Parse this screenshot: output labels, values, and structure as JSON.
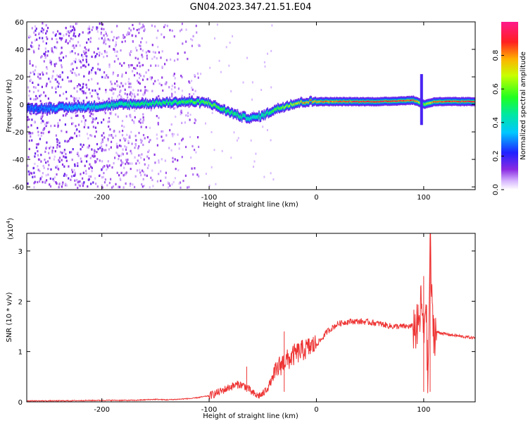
{
  "figure": {
    "title": "GN04.2023.347.21.51.E04"
  },
  "chart_data": [
    {
      "type": "heatmap",
      "title": "GN04.2023.347.21.51.E04",
      "xlabel": "Height of straight line (km)",
      "ylabel": "Frequency (Hz)",
      "xlim": [
        -270,
        148
      ],
      "ylim": [
        -62,
        60
      ],
      "x_ticks": [
        -200,
        -100,
        0,
        100
      ],
      "x_tick_labels": [
        "-200",
        "-100",
        "0",
        "100"
      ],
      "y_ticks": [
        -60,
        -40,
        -20,
        0,
        20,
        40,
        60
      ],
      "y_tick_labels": [
        "-60",
        "-40",
        "-20",
        "0",
        "20",
        "40",
        "60"
      ],
      "colorbar": {
        "label": "Normalized spectral amplitude",
        "range": [
          0,
          1
        ],
        "ticks": [
          0.0,
          0.2,
          0.4,
          0.6,
          0.8
        ],
        "tick_labels": [
          "0.0",
          "0.2",
          "0.4",
          "0.6",
          "0.8"
        ],
        "colormap": "rainbow (white→violet→blue→cyan→green→yellow→red→pink)"
      },
      "ridge": {
        "description": "dominant frequency ridge vs height",
        "points": [
          {
            "x": -270,
            "y": -3,
            "amp": 0.25
          },
          {
            "x": -220,
            "y": -2,
            "amp": 0.35
          },
          {
            "x": -180,
            "y": 0,
            "amp": 0.45
          },
          {
            "x": -150,
            "y": 1,
            "amp": 0.5
          },
          {
            "x": -120,
            "y": 2,
            "amp": 0.55
          },
          {
            "x": -100,
            "y": 1,
            "amp": 0.6
          },
          {
            "x": -90,
            "y": -3,
            "amp": 0.55
          },
          {
            "x": -80,
            "y": -6,
            "amp": 0.5
          },
          {
            "x": -70,
            "y": -9,
            "amp": 0.45
          },
          {
            "x": -60,
            "y": -10,
            "amp": 0.4
          },
          {
            "x": -50,
            "y": -8,
            "amp": 0.45
          },
          {
            "x": -40,
            "y": -4,
            "amp": 0.55
          },
          {
            "x": -25,
            "y": 0,
            "amp": 0.7
          },
          {
            "x": -10,
            "y": 2,
            "amp": 0.8
          },
          {
            "x": 20,
            "y": 2,
            "amp": 0.85
          },
          {
            "x": 60,
            "y": 2,
            "amp": 0.9
          },
          {
            "x": 90,
            "y": 3,
            "amp": 0.85
          },
          {
            "x": 100,
            "y": 0,
            "amp": 0.6
          },
          {
            "x": 110,
            "y": 2,
            "amp": 0.85
          },
          {
            "x": 148,
            "y": 2,
            "amp": 0.9
          }
        ],
        "burst": {
          "x": 98,
          "y_range": [
            -15,
            22
          ]
        }
      },
      "noise_region": {
        "x_range": [
          -270,
          -120
        ],
        "y_range": [
          -60,
          60
        ]
      }
    },
    {
      "type": "line",
      "xlabel": "Height of straight line (km)",
      "ylabel": "SNR (10 * v/v)",
      "y_scale_label": "(x10",
      "y_scale_exp": "4",
      "xlim": [
        -270,
        148
      ],
      "ylim": [
        0,
        3.35
      ],
      "x_ticks": [
        -200,
        -100,
        0,
        100
      ],
      "x_tick_labels": [
        "-200",
        "-100",
        "0",
        "100"
      ],
      "y_ticks": [
        0,
        1,
        2,
        3
      ],
      "y_tick_labels": [
        "0",
        "1",
        "2",
        "3"
      ],
      "color": "#ee3333",
      "series": [
        {
          "x": [
            -270,
            -240,
            -200,
            -170,
            -150,
            -140,
            -130,
            -115,
            -100,
            -90,
            -80,
            -72,
            -65,
            -60,
            -55,
            -50,
            -45,
            -40,
            -35,
            -30,
            -25,
            -20,
            -15,
            -10,
            -5,
            0,
            5,
            10,
            20,
            30,
            40,
            50,
            60,
            70,
            80,
            90,
            95,
            98,
            100,
            102,
            104,
            106,
            108,
            110,
            120,
            135,
            148
          ],
          "y": [
            0.02,
            0.02,
            0.03,
            0.03,
            0.05,
            0.04,
            0.05,
            0.07,
            0.12,
            0.2,
            0.3,
            0.35,
            0.3,
            0.18,
            0.12,
            0.15,
            0.3,
            0.5,
            0.7,
            0.8,
            0.85,
            0.95,
            1.0,
            1.05,
            1.1,
            1.15,
            1.25,
            1.4,
            1.55,
            1.6,
            1.6,
            1.58,
            1.55,
            1.5,
            1.5,
            1.5,
            1.45,
            2.0,
            1.2,
            2.2,
            0.2,
            3.35,
            1.6,
            1.4,
            1.35,
            1.3,
            1.27
          ]
        }
      ],
      "spikes": [
        {
          "x": -65,
          "y": 0.7
        },
        {
          "x": -30,
          "y": 1.4
        },
        {
          "x": 100,
          "y": 2.5
        },
        {
          "x": 106,
          "y": 3.35
        }
      ]
    }
  ]
}
